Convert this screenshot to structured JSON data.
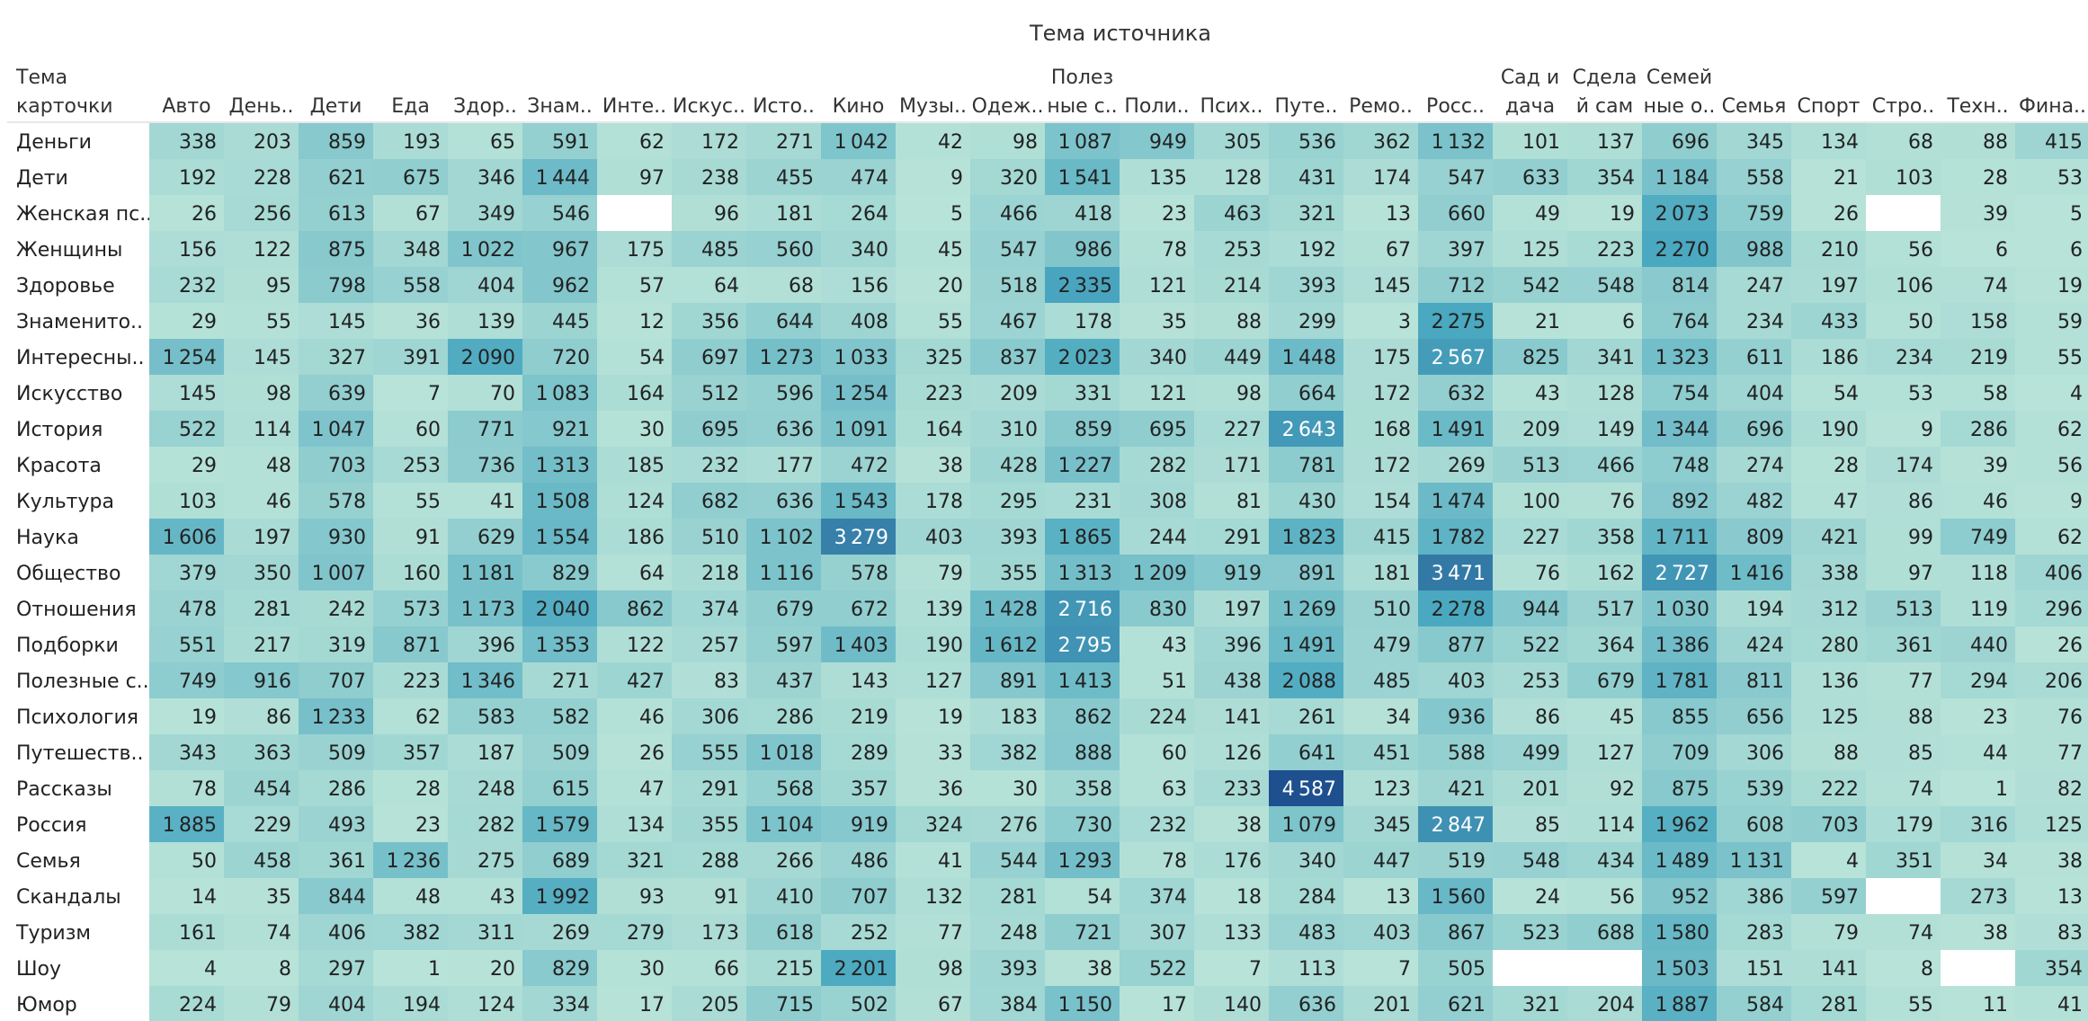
{
  "chart_data": {
    "type": "heatmap",
    "title": "Тема источника",
    "row_header": [
      "Тема",
      "карточки"
    ],
    "columns": [
      [
        "Авто"
      ],
      [
        "День.."
      ],
      [
        "Дети"
      ],
      [
        "Еда"
      ],
      [
        "Здор.."
      ],
      [
        "Знам.."
      ],
      [
        "Инте.."
      ],
      [
        "Искус.."
      ],
      [
        "Исто.."
      ],
      [
        "Кино"
      ],
      [
        "Музы.."
      ],
      [
        "Одеж.."
      ],
      [
        "Полез",
        "ные с.."
      ],
      [
        "Поли.."
      ],
      [
        "Псих.."
      ],
      [
        "Путе.."
      ],
      [
        "Ремо.."
      ],
      [
        "Росс.."
      ],
      [
        "Сад и",
        "дача"
      ],
      [
        "Сдела",
        "й сам"
      ],
      [
        "Семей",
        "ные о.."
      ],
      [
        "Семья"
      ],
      [
        "Спорт"
      ],
      [
        "Стро.."
      ],
      [
        "Техн.."
      ],
      [
        "Фина.."
      ]
    ],
    "rows": [
      "Деньги",
      "Дети",
      "Женская пс..",
      "Женщины",
      "Здоровье",
      "Знаменито..",
      "Интересны..",
      "Искусство",
      "История",
      "Красота",
      "Культура",
      "Наука",
      "Общество",
      "Отношения",
      "Подборки",
      "Полезные с..",
      "Психология",
      "Путешеств..",
      "Рассказы",
      "Россия",
      "Семья",
      "Скандалы",
      "Туризм",
      "Шоу",
      "Юмор"
    ],
    "values": [
      [
        338,
        203,
        859,
        193,
        65,
        591,
        62,
        172,
        271,
        1042,
        42,
        98,
        1087,
        949,
        305,
        536,
        362,
        1132,
        101,
        137,
        696,
        345,
        134,
        68,
        88,
        415
      ],
      [
        192,
        228,
        621,
        675,
        346,
        1444,
        97,
        238,
        455,
        474,
        9,
        320,
        1541,
        135,
        128,
        431,
        174,
        547,
        633,
        354,
        1184,
        558,
        21,
        103,
        28,
        53
      ],
      [
        26,
        256,
        613,
        67,
        349,
        546,
        null,
        96,
        181,
        264,
        5,
        466,
        418,
        23,
        463,
        321,
        13,
        660,
        49,
        19,
        2073,
        759,
        26,
        null,
        39,
        5
      ],
      [
        156,
        122,
        875,
        348,
        1022,
        967,
        175,
        485,
        560,
        340,
        45,
        547,
        986,
        78,
        253,
        192,
        67,
        397,
        125,
        223,
        2270,
        988,
        210,
        56,
        6,
        6
      ],
      [
        232,
        95,
        798,
        558,
        404,
        962,
        57,
        64,
        68,
        156,
        20,
        518,
        2335,
        121,
        214,
        393,
        145,
        712,
        542,
        548,
        814,
        247,
        197,
        106,
        74,
        19
      ],
      [
        29,
        55,
        145,
        36,
        139,
        445,
        12,
        356,
        644,
        408,
        55,
        467,
        178,
        35,
        88,
        299,
        3,
        2275,
        21,
        6,
        764,
        234,
        433,
        50,
        158,
        59
      ],
      [
        1254,
        145,
        327,
        391,
        2090,
        720,
        54,
        697,
        1273,
        1033,
        325,
        837,
        2023,
        340,
        449,
        1448,
        175,
        2567,
        825,
        341,
        1323,
        611,
        186,
        234,
        219,
        55
      ],
      [
        145,
        98,
        639,
        7,
        70,
        1083,
        164,
        512,
        596,
        1254,
        223,
        209,
        331,
        121,
        98,
        664,
        172,
        632,
        43,
        128,
        754,
        404,
        54,
        53,
        58,
        4
      ],
      [
        522,
        114,
        1047,
        60,
        771,
        921,
        30,
        695,
        636,
        1091,
        164,
        310,
        859,
        695,
        227,
        2643,
        168,
        1491,
        209,
        149,
        1344,
        696,
        190,
        9,
        286,
        62
      ],
      [
        29,
        48,
        703,
        253,
        736,
        1313,
        185,
        232,
        177,
        472,
        38,
        428,
        1227,
        282,
        171,
        781,
        172,
        269,
        513,
        466,
        748,
        274,
        28,
        174,
        39,
        56
      ],
      [
        103,
        46,
        578,
        55,
        41,
        1508,
        124,
        682,
        636,
        1543,
        178,
        295,
        231,
        308,
        81,
        430,
        154,
        1474,
        100,
        76,
        892,
        482,
        47,
        86,
        46,
        9
      ],
      [
        1606,
        197,
        930,
        91,
        629,
        1554,
        186,
        510,
        1102,
        3279,
        403,
        393,
        1865,
        244,
        291,
        1823,
        415,
        1782,
        227,
        358,
        1711,
        809,
        421,
        99,
        749,
        62
      ],
      [
        379,
        350,
        1007,
        160,
        1181,
        829,
        64,
        218,
        1116,
        578,
        79,
        355,
        1313,
        1209,
        919,
        891,
        181,
        3471,
        76,
        162,
        2727,
        1416,
        338,
        97,
        118,
        406
      ],
      [
        478,
        281,
        242,
        573,
        1173,
        2040,
        862,
        374,
        679,
        672,
        139,
        1428,
        2716,
        830,
        197,
        1269,
        510,
        2278,
        944,
        517,
        1030,
        194,
        312,
        513,
        119,
        296
      ],
      [
        551,
        217,
        319,
        871,
        396,
        1353,
        122,
        257,
        597,
        1403,
        190,
        1612,
        2795,
        43,
        396,
        1491,
        479,
        877,
        522,
        364,
        1386,
        424,
        280,
        361,
        440,
        26
      ],
      [
        749,
        916,
        707,
        223,
        1346,
        271,
        427,
        83,
        437,
        143,
        127,
        891,
        1413,
        51,
        438,
        2088,
        485,
        403,
        253,
        679,
        1781,
        811,
        136,
        77,
        294,
        206
      ],
      [
        19,
        86,
        1233,
        62,
        583,
        582,
        46,
        306,
        286,
        219,
        19,
        183,
        862,
        224,
        141,
        261,
        34,
        936,
        86,
        45,
        855,
        656,
        125,
        88,
        23,
        76
      ],
      [
        343,
        363,
        509,
        357,
        187,
        509,
        26,
        555,
        1018,
        289,
        33,
        382,
        888,
        60,
        126,
        641,
        451,
        588,
        499,
        127,
        709,
        306,
        88,
        85,
        44,
        77
      ],
      [
        78,
        454,
        286,
        28,
        248,
        615,
        47,
        291,
        568,
        357,
        36,
        30,
        358,
        63,
        233,
        4587,
        123,
        421,
        201,
        92,
        875,
        539,
        222,
        74,
        1,
        82
      ],
      [
        1885,
        229,
        493,
        23,
        282,
        1579,
        134,
        355,
        1104,
        919,
        324,
        276,
        730,
        232,
        38,
        1079,
        345,
        2847,
        85,
        114,
        1962,
        608,
        703,
        179,
        316,
        125
      ],
      [
        50,
        458,
        361,
        1236,
        275,
        689,
        321,
        288,
        266,
        486,
        41,
        544,
        1293,
        78,
        176,
        340,
        447,
        519,
        548,
        434,
        1489,
        1131,
        4,
        351,
        34,
        38
      ],
      [
        14,
        35,
        844,
        48,
        43,
        1992,
        93,
        91,
        410,
        707,
        132,
        281,
        54,
        374,
        18,
        284,
        13,
        1560,
        24,
        56,
        952,
        386,
        597,
        null,
        273,
        13
      ],
      [
        161,
        74,
        406,
        382,
        311,
        269,
        279,
        173,
        618,
        252,
        77,
        248,
        721,
        307,
        133,
        483,
        403,
        867,
        523,
        688,
        1580,
        283,
        79,
        74,
        38,
        83
      ],
      [
        4,
        8,
        297,
        1,
        20,
        829,
        30,
        66,
        215,
        2201,
        98,
        393,
        38,
        522,
        7,
        113,
        7,
        505,
        null,
        null,
        1503,
        151,
        141,
        8,
        null,
        354
      ],
      [
        224,
        79,
        404,
        194,
        124,
        334,
        17,
        205,
        715,
        502,
        67,
        384,
        1150,
        17,
        140,
        636,
        201,
        621,
        321,
        204,
        1887,
        584,
        281,
        55,
        11,
        41
      ]
    ],
    "color_scale": {
      "min": 0,
      "max": 4587,
      "low_color": "#b8e3d8",
      "high_color": "#1e4f8f"
    }
  }
}
